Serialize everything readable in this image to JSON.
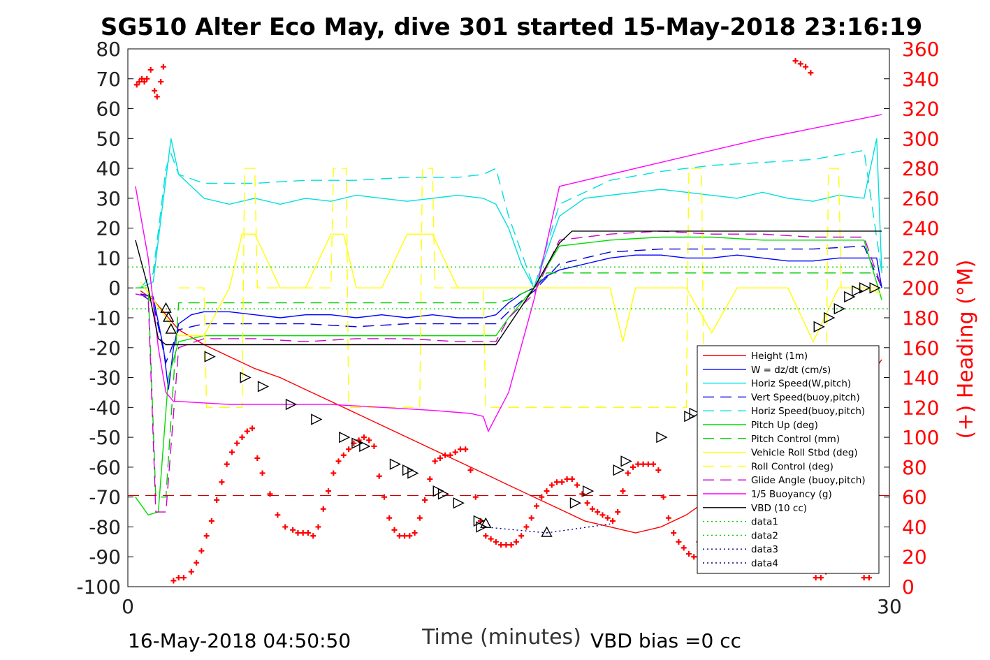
{
  "footer": {
    "timestamp": "16-May-2018 04:50:50",
    "vbd_bias": "VBD bias =0 cc"
  },
  "colors": {
    "height": "#ff0000",
    "w": "#0000ff",
    "horiz_w": "#00e0e0",
    "vert_buoy": "#0000dd",
    "horiz_buoy": "#00e0e0",
    "pitch_up": "#00dd00",
    "pitch_control": "#00cc00",
    "roll": "#ffff00",
    "roll_control": "#ffff00",
    "glide": "#cc00cc",
    "buoyancy": "#ff00ff",
    "vbd": "#000000",
    "heading": "#ff0000"
  },
  "chart_data": {
    "type": "line",
    "title": "SG510 Alter Eco May, dive 301 started 15-May-2018 23:16:19",
    "xlabel": "Time (minutes)",
    "ylabel": "",
    "ylabel_right": "(+) Heading (°M)",
    "xlim": [
      0,
      30
    ],
    "ylim": [
      -100,
      80
    ],
    "ylim_right": [
      0,
      360
    ],
    "x_ticks": [
      0,
      30
    ],
    "y_ticks": [
      80,
      70,
      60,
      50,
      40,
      30,
      20,
      10,
      0,
      -10,
      -20,
      -30,
      -40,
      -50,
      -60,
      -70,
      -80,
      -90,
      -100
    ],
    "y_ticks_right": [
      360,
      340,
      320,
      300,
      280,
      260,
      240,
      220,
      200,
      180,
      160,
      140,
      120,
      100,
      80,
      60,
      40,
      20,
      0
    ],
    "legend_position": "bottom-right",
    "legend": [
      {
        "label": "Height (1m)",
        "color": "#ff0000",
        "dash": "solid"
      },
      {
        "label": "W = dz/dt (cm/s)",
        "color": "#0000ff",
        "dash": "solid"
      },
      {
        "label": "Horiz Speed(W,pitch)",
        "color": "#00e0e0",
        "dash": "solid"
      },
      {
        "label": "Vert Speed(buoy,pitch)",
        "color": "#0000dd",
        "dash": "dashed"
      },
      {
        "label": "Horiz Speed(buoy,pitch)",
        "color": "#00e0e0",
        "dash": "dashed"
      },
      {
        "label": "Pitch Up (deg)",
        "color": "#00dd00",
        "dash": "solid"
      },
      {
        "label": "Pitch Control (mm)",
        "color": "#00cc00",
        "dash": "dashed"
      },
      {
        "label": "Vehicle Roll Stbd (deg)",
        "color": "#ffff00",
        "dash": "solid"
      },
      {
        "label": "Roll Control (deg)",
        "color": "#ffff00",
        "dash": "dashed"
      },
      {
        "label": "Glide Angle (buoy,pitch)",
        "color": "#cc00cc",
        "dash": "dashed"
      },
      {
        "label": "1/5 Buoyancy (g)",
        "color": "#ff00ff",
        "dash": "solid"
      },
      {
        "label": "VBD (10 cc)",
        "color": "#000000",
        "dash": "solid"
      },
      {
        "label": "data1",
        "color": "#00cc00",
        "dash": "dotted"
      },
      {
        "label": "data2",
        "color": "#00cc00",
        "dash": "dotted"
      },
      {
        "label": "data3",
        "color": "#000080",
        "dash": "dotted"
      },
      {
        "label": "data4",
        "color": "#000080",
        "dash": "dotted"
      }
    ],
    "series": [
      {
        "name": "Height (1m)",
        "x": [
          0.5,
          1.0,
          1.5,
          2.0,
          3.0,
          4.0,
          5.0,
          6.0,
          7.0,
          8.0,
          9.0,
          10.0,
          11.0,
          12.0,
          13.0,
          14.0,
          15.0,
          16.0,
          17.0,
          18.0,
          19.0,
          20.0,
          21.0,
          22.0,
          23.0,
          24.0,
          25.0,
          26.0,
          27.0,
          28.0,
          29.0,
          29.7
        ],
        "y": [
          -1,
          -4,
          -9,
          -14,
          -19,
          -23,
          -27,
          -30,
          -34,
          -38,
          -42,
          -46,
          -50,
          -54,
          -58,
          -62,
          -66,
          -70,
          -74,
          -78,
          -80,
          -82,
          -80,
          -76,
          -70,
          -64,
          -58,
          -52,
          -46,
          -40,
          -32,
          -24
        ]
      },
      {
        "name": "W = dz/dt (cm/s)",
        "x": [
          0.5,
          1.0,
          1.4,
          1.6,
          1.8,
          2.0,
          2.5,
          3.0,
          4.0,
          5.0,
          6.0,
          7.0,
          8.0,
          9.0,
          10.0,
          11.0,
          12.0,
          13.0,
          14.0,
          14.5,
          15.0,
          15.5,
          16.0,
          16.5,
          17.0,
          18.0,
          19.0,
          20.0,
          21.0,
          22.0,
          23.0,
          24.0,
          25.0,
          26.0,
          27.0,
          28.0,
          29.0,
          29.5,
          29.7
        ],
        "y": [
          -2,
          -3,
          -20,
          -34,
          -20,
          -12,
          -9,
          -8,
          -8,
          -9,
          -10,
          -9,
          -9,
          -10,
          -9,
          -10,
          -9,
          -10,
          -10,
          -9,
          -5,
          -2,
          0,
          4,
          6,
          8,
          10,
          11,
          11,
          10,
          10,
          11,
          10,
          9,
          9,
          10,
          10,
          10,
          0
        ]
      },
      {
        "name": "Horiz Speed(W,pitch)",
        "x": [
          0.5,
          1.0,
          1.4,
          1.7,
          2.0,
          2.5,
          3.0,
          4.0,
          5.0,
          6.0,
          7.0,
          8.0,
          9.0,
          10.0,
          11.0,
          12.0,
          13.0,
          14.0,
          14.5,
          15.0,
          15.5,
          16.0,
          16.5,
          17.0,
          18.0,
          19.0,
          20.0,
          21.0,
          22.0,
          23.0,
          24.0,
          25.0,
          26.0,
          27.0,
          28.0,
          29.0,
          29.5,
          29.7
        ],
        "y": [
          0,
          2,
          30,
          50,
          38,
          34,
          30,
          28,
          30,
          28,
          30,
          29,
          31,
          30,
          29,
          30,
          31,
          30,
          28,
          20,
          8,
          0,
          12,
          24,
          30,
          31,
          32,
          33,
          32,
          31,
          30,
          32,
          30,
          29,
          31,
          30,
          50,
          5
        ]
      },
      {
        "name": "Vert Speed(buoy,pitch)",
        "x": [
          0.5,
          1.0,
          1.5,
          2.0,
          3.0,
          5.0,
          7.0,
          9.0,
          11.0,
          13.0,
          14.5,
          15.0,
          16.0,
          17.0,
          19.0,
          21.0,
          23.0,
          25.0,
          27.0,
          29.0,
          29.7
        ],
        "y": [
          -2,
          -5,
          -25,
          -14,
          -12,
          -12,
          -12,
          -13,
          -12,
          -12,
          -12,
          -8,
          -1,
          8,
          12,
          13,
          13,
          13,
          13,
          14,
          0
        ]
      },
      {
        "name": "Horiz Speed(buoy,pitch)",
        "x": [
          0.5,
          1.0,
          1.5,
          1.7,
          2.0,
          3.0,
          5.0,
          7.0,
          9.0,
          11.0,
          13.0,
          14.0,
          14.5,
          15.0,
          16.0,
          17.0,
          19.0,
          21.0,
          23.0,
          25.0,
          27.0,
          29.0,
          29.7
        ],
        "y": [
          0,
          5,
          40,
          45,
          38,
          35,
          35,
          36,
          36,
          37,
          37,
          38,
          40,
          24,
          0,
          28,
          36,
          39,
          41,
          42,
          43,
          46,
          5
        ]
      },
      {
        "name": "Pitch Up (deg)",
        "x": [
          0.3,
          0.8,
          1.2,
          1.6,
          2.0,
          3.0,
          5.0,
          7.0,
          9.0,
          11.0,
          13.0,
          14.5,
          15.0,
          16.0,
          17.0,
          19.0,
          21.0,
          23.0,
          25.0,
          27.0,
          29.0,
          29.7
        ],
        "y": [
          -70,
          -76,
          -75,
          -30,
          -18,
          -16,
          -16,
          -16,
          -16,
          -16,
          -16,
          -16,
          -10,
          0,
          14,
          16,
          17,
          17,
          16,
          16,
          16,
          -4
        ]
      },
      {
        "name": "Pitch Control (mm)",
        "x": [
          0.3,
          0.8,
          1.1,
          1.5,
          2.0,
          5.0,
          10.0,
          14.5,
          15.0,
          16.0,
          16.5,
          20.0,
          25.0,
          29.5,
          29.7
        ],
        "y": [
          0,
          0,
          -70,
          -70,
          -5,
          -5,
          -5,
          -5,
          -4,
          0,
          5,
          5,
          5,
          5,
          0
        ]
      },
      {
        "name": "Vehicle Roll Stbd (deg)",
        "x": [
          0.5,
          2.0,
          3.0,
          4.0,
          4.5,
          5.0,
          6.0,
          7.0,
          8.0,
          8.5,
          9.0,
          10.0,
          11.0,
          12.0,
          13.0,
          14.0,
          15.0,
          16.0,
          17.0,
          18.0,
          19.0,
          19.5,
          20.0,
          21.0,
          22.0,
          23.0,
          24.0,
          25.0,
          26.0,
          27.0,
          28.0,
          29.0,
          29.7
        ],
        "y": [
          2,
          -16,
          -16,
          0,
          18,
          18,
          0,
          0,
          18,
          18,
          0,
          0,
          18,
          18,
          0,
          0,
          0,
          0,
          0,
          0,
          0,
          -18,
          0,
          0,
          0,
          -15,
          0,
          0,
          0,
          -18,
          0,
          0,
          -2
        ]
      },
      {
        "name": "Roll Control (deg)",
        "x": [
          2.0,
          3.0,
          3.1,
          4.5,
          4.6,
          5.0,
          5.1,
          8.0,
          8.1,
          8.6,
          8.7,
          11.5,
          11.6,
          12.0,
          12.1,
          14.0,
          14.1,
          22.0,
          22.1,
          22.6,
          22.7,
          27.5,
          27.6,
          28.0,
          28.1,
          29.7
        ],
        "y": [
          0,
          0,
          -40,
          -40,
          40,
          40,
          0,
          0,
          40,
          40,
          -40,
          -40,
          40,
          40,
          0,
          0,
          -40,
          -40,
          40,
          40,
          -40,
          -40,
          40,
          40,
          0,
          0
        ]
      },
      {
        "name": "Glide Angle (buoy,pitch)",
        "x": [
          0.3,
          0.8,
          1.1,
          1.5,
          2.0,
          3.0,
          5.0,
          7.0,
          9.0,
          11.0,
          13.0,
          14.5,
          15.0,
          16.0,
          17.0,
          19.0,
          21.0,
          23.0,
          25.0,
          27.0,
          29.0,
          29.7
        ],
        "y": [
          -2,
          -3,
          -75,
          -75,
          -20,
          -17,
          -17,
          -18,
          -17,
          -17,
          -18,
          -18,
          -10,
          -2,
          16,
          18,
          19,
          18,
          18,
          17,
          17,
          0
        ]
      },
      {
        "name": "1/5 Buoyancy (g)",
        "x": [
          0.3,
          0.8,
          1.2,
          1.5,
          1.8,
          2.0,
          4.0,
          8.0,
          12.0,
          13.5,
          14.0,
          14.2,
          15.0,
          16.0,
          17.0,
          20.0,
          25.0,
          29.7
        ],
        "y": [
          34,
          10,
          -20,
          -35,
          -38,
          -38,
          -39,
          -39,
          -41,
          -42,
          -43,
          -48,
          -35,
          -4,
          34,
          40,
          50,
          58
        ]
      },
      {
        "name": "VBD (10 cc)",
        "x": [
          0.3,
          0.8,
          1.2,
          1.5,
          2.0,
          5.0,
          10.0,
          14.0,
          14.5,
          16.0,
          17.0,
          17.5,
          20.0,
          25.0,
          29.7
        ],
        "y": [
          16,
          0,
          -17,
          -19,
          -19,
          -19,
          -19,
          -19,
          -19,
          0,
          15,
          19,
          19,
          19,
          19
        ]
      },
      {
        "name": "data1",
        "x": [
          0,
          30
        ],
        "y": [
          7,
          7
        ]
      },
      {
        "name": "data2",
        "x": [
          0,
          30
        ],
        "y": [
          -7,
          -7
        ]
      },
      {
        "name": "data3",
        "x": [
          14,
          16.5
        ],
        "y": [
          -80,
          -82
        ]
      },
      {
        "name": "data4",
        "x": [
          16.5,
          19
        ],
        "y": [
          -82,
          -79
        ]
      }
    ],
    "heading_points": {
      "x": [
        0.35,
        0.45,
        0.55,
        0.65,
        0.75,
        0.9,
        1.05,
        1.15,
        1.3,
        1.4,
        1.8,
        2.0,
        2.2,
        2.5,
        2.7,
        2.9,
        3.1,
        3.3,
        3.5,
        3.7,
        3.9,
        4.1,
        4.3,
        4.5,
        4.7,
        4.9,
        5.1,
        5.3,
        5.6,
        5.9,
        6.2,
        6.5,
        6.7,
        6.9,
        7.1,
        7.3,
        7.5,
        7.7,
        7.9,
        8.1,
        8.3,
        8.5,
        8.7,
        8.9,
        9.1,
        9.3,
        9.5,
        9.7,
        9.9,
        10.1,
        10.3,
        10.5,
        10.7,
        10.9,
        11.1,
        11.3,
        11.5,
        11.7,
        11.9,
        12.1,
        12.3,
        12.5,
        12.7,
        12.9,
        13.1,
        13.3,
        13.5,
        13.7,
        13.9,
        14.1,
        14.3,
        14.5,
        14.7,
        14.9,
        15.1,
        15.3,
        15.5,
        15.7,
        15.9,
        16.1,
        16.3,
        16.5,
        16.7,
        16.9,
        17.1,
        17.3,
        17.5,
        17.7,
        17.9,
        18.1,
        18.3,
        18.5,
        18.7,
        18.9,
        19.1,
        19.3,
        19.5,
        19.7,
        19.9,
        20.1,
        20.3,
        20.5,
        20.7,
        20.9,
        21.1,
        21.3,
        21.5,
        21.7,
        21.9,
        22.1,
        22.3,
        22.5,
        22.7,
        22.9,
        23.1,
        23.3,
        23.5,
        23.7,
        23.9,
        24.1,
        24.3,
        24.5,
        24.7,
        24.9,
        25.1,
        25.3,
        25.5,
        25.7,
        25.9,
        26.1,
        26.3,
        26.5,
        26.7,
        26.9,
        27.1,
        27.3,
        27.5,
        27.7,
        27.9,
        28.1,
        28.3,
        28.5,
        28.7,
        29.0,
        29.2,
        29.4
      ],
      "y": [
        336,
        338,
        340,
        338,
        340,
        346,
        332,
        328,
        338,
        348,
        4,
        6,
        6,
        10,
        16,
        24,
        34,
        44,
        58,
        70,
        82,
        90,
        96,
        100,
        104,
        106,
        86,
        76,
        62,
        48,
        40,
        38,
        36,
        36,
        36,
        34,
        40,
        52,
        64,
        76,
        84,
        88,
        92,
        96,
        98,
        100,
        98,
        94,
        74,
        60,
        46,
        38,
        34,
        34,
        34,
        36,
        46,
        58,
        72,
        84,
        86,
        88,
        88,
        90,
        92,
        92,
        78,
        60,
        44,
        34,
        32,
        30,
        28,
        28,
        28,
        30,
        34,
        40,
        46,
        54,
        60,
        64,
        68,
        70,
        70,
        72,
        72,
        68,
        62,
        56,
        52,
        50,
        48,
        46,
        44,
        50,
        64,
        76,
        80,
        82,
        82,
        82,
        82,
        78,
        60,
        46,
        36,
        30,
        26,
        22,
        20,
        30,
        40,
        48,
        56,
        62,
        70,
        74,
        76,
        76,
        68,
        64,
        60,
        56,
        50,
        46,
        40,
        38,
        36,
        36,
        352,
        350,
        348,
        344,
        6,
        6,
        10,
        14,
        18,
        24,
        28,
        32,
        36,
        6,
        6,
        12
      ]
    },
    "markers": {
      "up_triangles": {
        "x": [
          1.5,
          1.6,
          1.7,
          14.1,
          16.5
        ],
        "y": [
          -7,
          -10,
          -14,
          -79,
          -82
        ]
      },
      "right_triangles": {
        "x": [
          3.2,
          4.6,
          5.3,
          6.4,
          7.4,
          8.5,
          9.0,
          9.3,
          10.5,
          11.0,
          11.2,
          12.2,
          12.4,
          13.0,
          13.8,
          13.9,
          17.6,
          18.1,
          19.3,
          19.6,
          21.0,
          22.1,
          22.3,
          27.2,
          27.6,
          28.0,
          28.4,
          28.7,
          29.0,
          29.4
        ],
        "y": [
          -23,
          -30,
          -33,
          -39,
          -44,
          -50,
          -52,
          -53,
          -59,
          -61,
          -62,
          -68,
          -69,
          -72,
          -78,
          -80,
          -72,
          -68,
          -61,
          -58,
          -50,
          -43,
          -42,
          -13,
          -10,
          -7,
          -3,
          -1,
          0,
          0
        ]
      }
    },
    "reference_line": {
      "name": "target",
      "y": -69.5,
      "color": "#cc0000",
      "dash": "dashed"
    }
  }
}
